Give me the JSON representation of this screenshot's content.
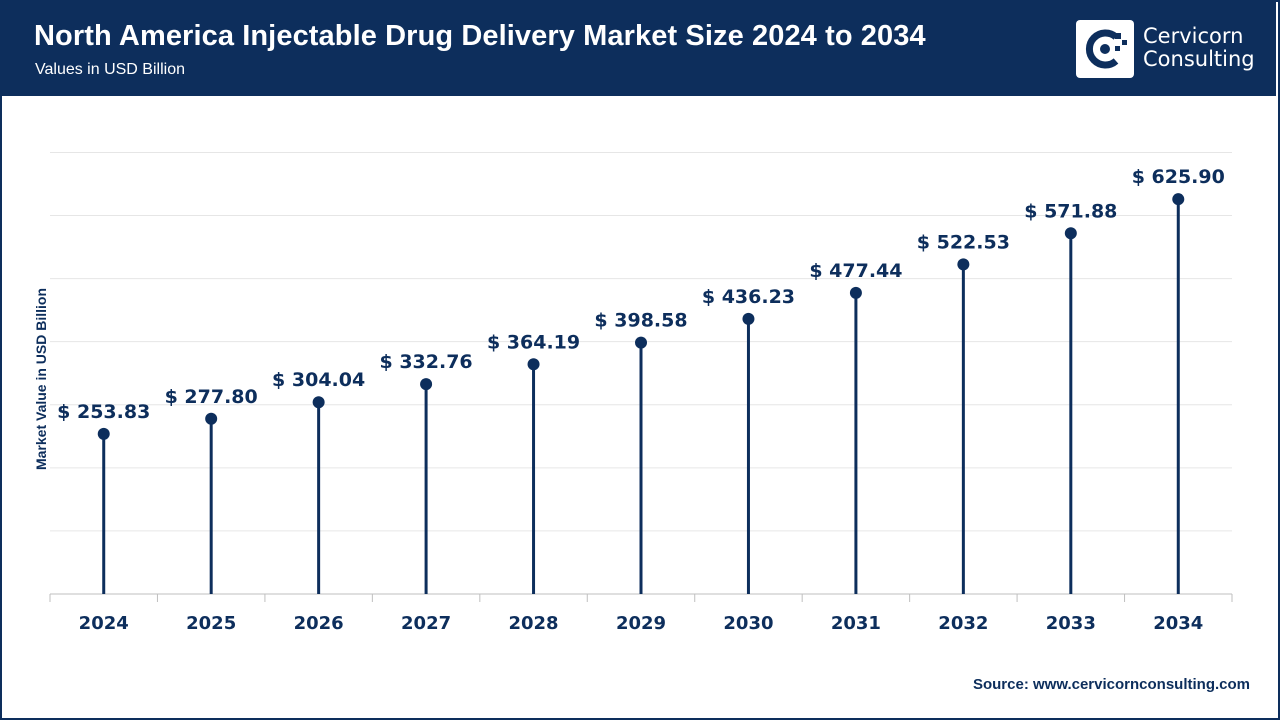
{
  "header": {
    "title": "North America Injectable Drug Delivery Market Size 2024 to 2034",
    "subtitle": "Values in USD Billion"
  },
  "logo": {
    "line1": "Cervicorn",
    "line2": "Consulting",
    "icon": "cervicorn-logo-icon"
  },
  "source": {
    "label": "Source:",
    "url": "www.cervicornconsulting.com"
  },
  "colors": {
    "brand": "#0d2e5c",
    "grid": "#e6e6e6",
    "text": "#1f2f4d"
  },
  "chart_data": {
    "type": "lollipop",
    "title": "North America Injectable Drug Delivery Market Size 2024 to 2034",
    "subtitle": "Values in USD Billion",
    "xlabel": "",
    "ylabel": "Market Value in USD Billion",
    "categories": [
      "2024",
      "2025",
      "2026",
      "2027",
      "2028",
      "2029",
      "2030",
      "2031",
      "2032",
      "2033",
      "2034"
    ],
    "values": [
      253.83,
      277.8,
      304.04,
      332.76,
      364.19,
      398.58,
      436.23,
      477.44,
      522.53,
      571.88,
      625.9
    ],
    "data_labels": [
      "$ 253.83",
      "$ 277.80",
      "$ 304.04",
      "$ 332.76",
      "$ 364.19",
      "$ 398.58",
      "$ 436.23",
      "$ 477.44",
      "$ 522.53",
      "$ 571.88",
      "$ 625.90"
    ],
    "ylim": [
      0,
      700
    ],
    "grid": true,
    "legend": "none"
  }
}
